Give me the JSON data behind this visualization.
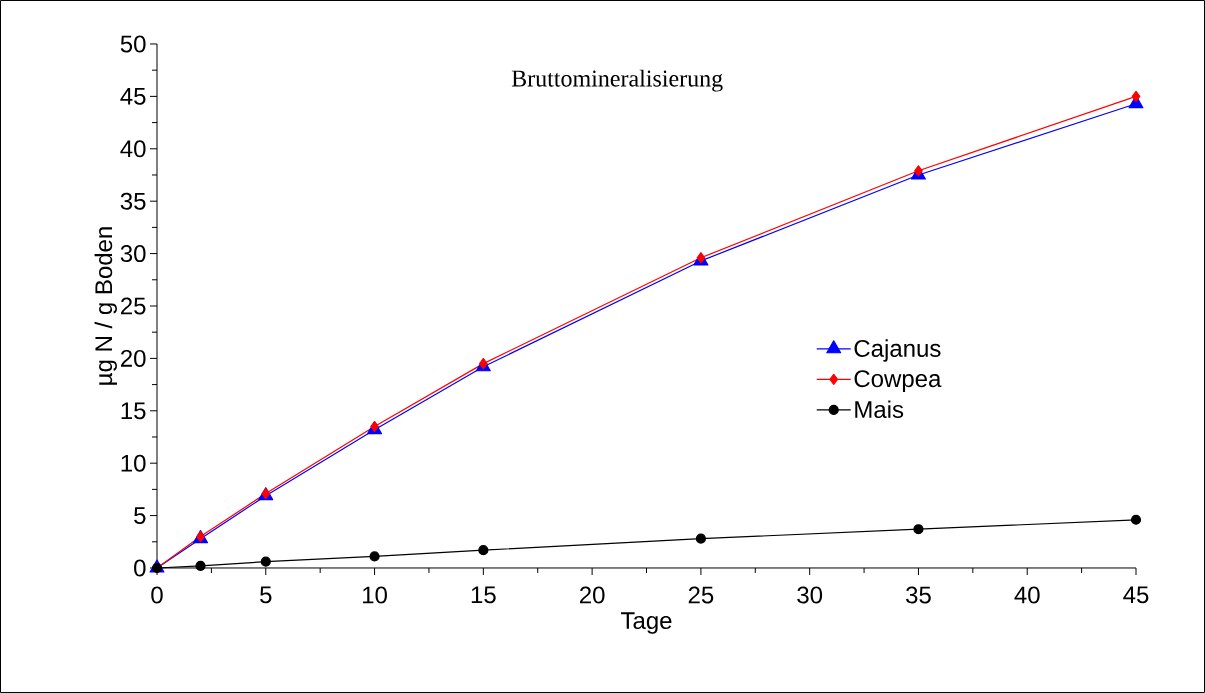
{
  "chart_data": {
    "type": "line",
    "title": "Bruttomineralisierung",
    "xlabel": "Tage",
    "ylabel": "µg N / g Boden",
    "x": [
      0,
      2,
      5,
      10,
      15,
      25,
      35,
      45
    ],
    "series": [
      {
        "name": "Cajanus",
        "color": "#0000ff",
        "marker": "triangle",
        "values": [
          0,
          2.8,
          6.9,
          13.2,
          19.2,
          29.3,
          37.5,
          44.3
        ]
      },
      {
        "name": "Cowpea",
        "color": "#ff0000",
        "marker": "diamond",
        "values": [
          0,
          3.0,
          7.1,
          13.5,
          19.5,
          29.6,
          37.9,
          45.0
        ]
      },
      {
        "name": "Mais",
        "color": "#000000",
        "marker": "circle",
        "values": [
          0,
          0.2,
          0.6,
          1.1,
          1.7,
          2.8,
          3.7,
          4.6
        ]
      }
    ],
    "xlim": [
      0,
      45
    ],
    "xticks": [
      0,
      5,
      10,
      15,
      20,
      25,
      30,
      35,
      40,
      45
    ],
    "ylim": [
      0,
      50
    ],
    "yticks": [
      0,
      5,
      10,
      15,
      20,
      25,
      30,
      35,
      40,
      45,
      50
    ],
    "grid": false,
    "legend": "right",
    "line_style": "solid"
  }
}
